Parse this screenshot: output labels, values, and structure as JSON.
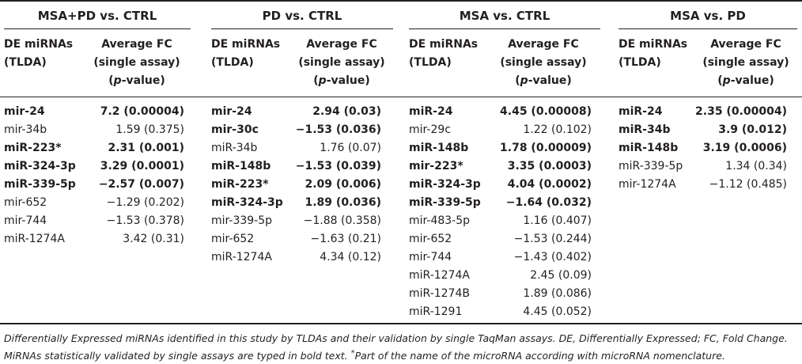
{
  "headers": {
    "mirna_line1": "DE miRNAs",
    "mirna_line2": "(TLDA)",
    "fc_line1": "Average FC",
    "fc_line2": "(single assay)",
    "fc_line3_pre": "(",
    "fc_line3_italic": "p",
    "fc_line3_post": "-value)"
  },
  "groups": [
    {
      "title": "MSA+PD vs. CTRL",
      "rows": [
        {
          "mirna": "mir-24",
          "fc": "7.2 (0.00004)",
          "bold": true
        },
        {
          "mirna": "mir-34b",
          "fc": "1.59 (0.375)",
          "bold": false
        },
        {
          "mirna": "miR-223*",
          "fc": "2.31 (0.001)",
          "bold": true
        },
        {
          "mirna": "miR-324-3p",
          "fc": "3.29 (0.0001)",
          "bold": true
        },
        {
          "mirna": "miR-339-5p",
          "fc": "−2.57 (0.007)",
          "bold": true
        },
        {
          "mirna": "mir-652",
          "fc": "−1.29 (0.202)",
          "bold": false
        },
        {
          "mirna": "mir-744",
          "fc": "−1.53 (0.378)",
          "bold": false
        },
        {
          "mirna": "miR-1274A",
          "fc": "3.42 (0.31)",
          "bold": false
        }
      ]
    },
    {
      "title": "PD vs. CTRL",
      "rows": [
        {
          "mirna": "mir-24",
          "fc": "2.94 (0.03)",
          "bold": true
        },
        {
          "mirna": "mir-30c",
          "fc": "−1.53 (0.036)",
          "bold": true
        },
        {
          "mirna": "miR-34b",
          "fc": "1.76 (0.07)",
          "bold": false
        },
        {
          "mirna": "miR-148b",
          "fc": "−1.53 (0.039)",
          "bold": true
        },
        {
          "mirna": "miR-223*",
          "fc": "2.09 (0.006)",
          "bold": true
        },
        {
          "mirna": "miR-324-3p",
          "fc": "1.89 (0.036)",
          "bold": true
        },
        {
          "mirna": "mir-339-5p",
          "fc": "−1.88 (0.358)",
          "bold": false
        },
        {
          "mirna": "mir-652",
          "fc": "−1.63 (0.21)",
          "bold": false
        },
        {
          "mirna": "miR-1274A",
          "fc": "4.34 (0.12)",
          "bold": false
        }
      ]
    },
    {
      "title": "MSA vs. CTRL",
      "rows": [
        {
          "mirna": "miR-24",
          "fc": "4.45 (0.00008)",
          "bold": true
        },
        {
          "mirna": "mir-29c",
          "fc": "1.22 (0.102)",
          "bold": false
        },
        {
          "mirna": "miR-148b",
          "fc": "1.78 (0.00009)",
          "bold": true
        },
        {
          "mirna": "mir-223*",
          "fc": "3.35 (0.0003)",
          "bold": true
        },
        {
          "mirna": "miR-324-3p",
          "fc": "4.04 (0.0002)",
          "bold": true
        },
        {
          "mirna": "miR-339-5p",
          "fc": "−1.64 (0.032)",
          "bold": true
        },
        {
          "mirna": "mir-483-5p",
          "fc": "1.16 (0.407)",
          "bold": false
        },
        {
          "mirna": "mir-652",
          "fc": "−1.53 (0.244)",
          "bold": false
        },
        {
          "mirna": "mir-744",
          "fc": "−1.43 (0.402)",
          "bold": false
        },
        {
          "mirna": "miR-1274A",
          "fc": "2.45 (0.09)",
          "bold": false
        },
        {
          "mirna": "miR-1274B",
          "fc": "1.89 (0.086)",
          "bold": false
        },
        {
          "mirna": "miR-1291",
          "fc": "4.45 (0.052)",
          "bold": false
        }
      ]
    },
    {
      "title": "MSA vs. PD",
      "rows": [
        {
          "mirna": "miR-24",
          "fc": "2.35 (0.00004)",
          "bold": true
        },
        {
          "mirna": "miR-34b",
          "fc": "3.9 (0.012)",
          "bold": true
        },
        {
          "mirna": "miR-148b",
          "fc": "3.19 (0.0006)",
          "bold": true
        },
        {
          "mirna": "miR-339-5p",
          "fc": "1.34 (0.34)",
          "bold": false
        },
        {
          "mirna": "mir-1274A",
          "fc": "−1.12 (0.485)",
          "bold": false
        }
      ]
    }
  ],
  "caption": {
    "line1": "Differentially Expressed miRNAs identified in this study by TLDAs and their validation by single TaqMan assays. DE, Differentially Expressed; FC, Fold Change.",
    "line2_pre": "MiRNAs statistically validated by single assays are typed in bold text. ",
    "footnote_mark": "*",
    "line2_post": "Part of the name of the microRNA according with microRNA nomenclature."
  }
}
